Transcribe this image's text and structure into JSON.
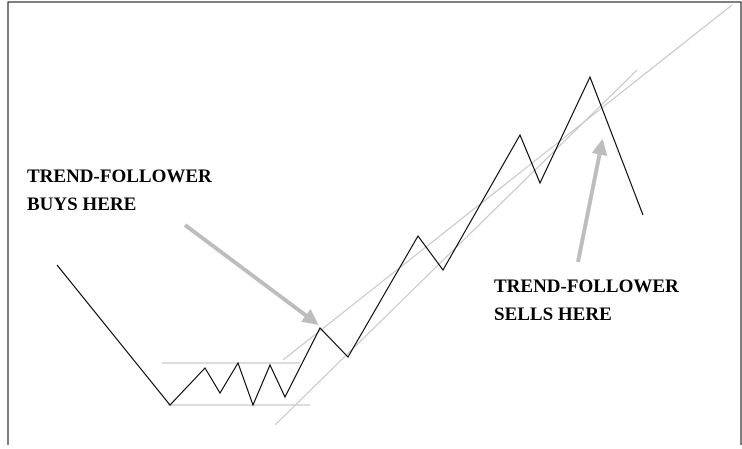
{
  "annotations": [
    {
      "lines": [
        "TREND-FOLLOWER",
        "BUYS HERE"
      ]
    },
    {
      "lines": [
        "TREND-FOLLOWER",
        "SELLS HERE"
      ]
    }
  ]
}
